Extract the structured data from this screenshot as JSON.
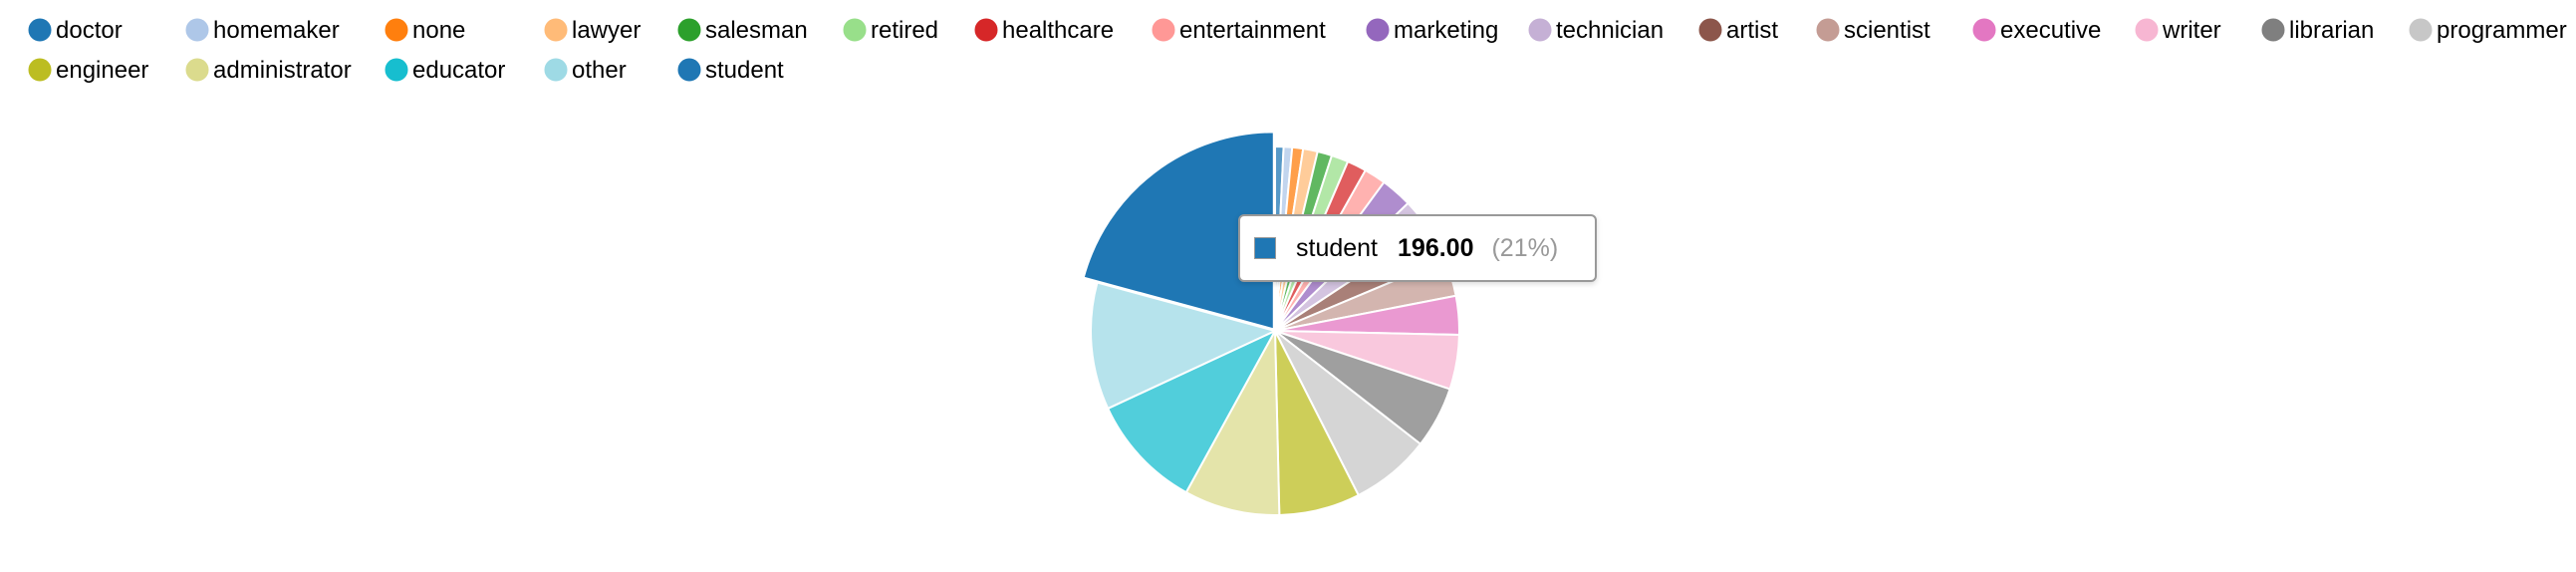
{
  "chart_data": {
    "type": "pie",
    "categories": [
      "doctor",
      "homemaker",
      "none",
      "lawyer",
      "salesman",
      "retired",
      "healthcare",
      "entertainment",
      "marketing",
      "technician",
      "artist",
      "scientist",
      "executive",
      "writer",
      "librarian",
      "programmer",
      "engineer",
      "administrator",
      "educator",
      "other",
      "student"
    ],
    "values": [
      7,
      7,
      9,
      12,
      12,
      14,
      16,
      18,
      26,
      27,
      28,
      31,
      32,
      45,
      51,
      66,
      67,
      79,
      95,
      105,
      196
    ],
    "colors": [
      "#1f77b4",
      "#aec7e8",
      "#ff7f0e",
      "#ffbb78",
      "#2ca02c",
      "#98df8a",
      "#d62728",
      "#ff9896",
      "#9467bd",
      "#c5b0d5",
      "#8c564b",
      "#c49c94",
      "#e377c2",
      "#f7b6d2",
      "#7f7f7f",
      "#c7c7c7",
      "#bcbd22",
      "#dbdb8d",
      "#17becf",
      "#9edae5",
      "#1f77b4"
    ],
    "legend_placement": "top-left",
    "highlighted": "student"
  },
  "tooltip": {
    "name": "student",
    "value": "196.00",
    "percent": "(21%)",
    "color": "#1f77b4"
  }
}
